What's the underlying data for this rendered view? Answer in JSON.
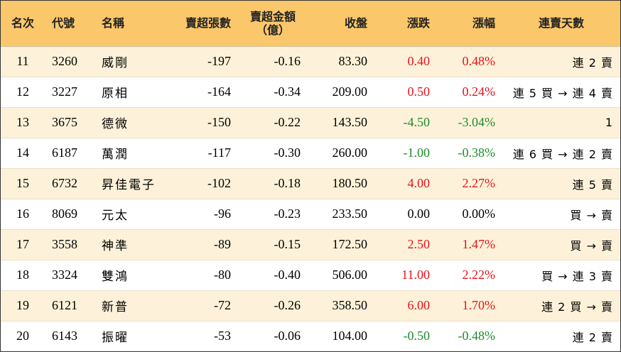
{
  "columns": {
    "rank": "名次",
    "code": "代號",
    "name": "名稱",
    "net_lots": "賣超張數",
    "net_amount_line1": "賣超金額",
    "net_amount_line2": "（億）",
    "close": "收盤",
    "change": "漲跌",
    "pct": "漲幅",
    "streak": "連賣天數"
  },
  "colors": {
    "header_bg": "#fbc76b",
    "stripe": "#fdf2d9",
    "up": "#e8111b",
    "down": "#1f8a2c"
  },
  "rows": [
    {
      "rank": "11",
      "code": "3260",
      "name": "威剛",
      "net_lots": "-197",
      "net_amount": "-0.16",
      "close": "83.30",
      "change": "0.40",
      "pct": "0.48%",
      "dir": "up",
      "streak": "連 2 賣"
    },
    {
      "rank": "12",
      "code": "3227",
      "name": "原相",
      "net_lots": "-164",
      "net_amount": "-0.34",
      "close": "209.00",
      "change": "0.50",
      "pct": "0.24%",
      "dir": "up",
      "streak": "連 5 買 → 連 4 賣"
    },
    {
      "rank": "13",
      "code": "3675",
      "name": "德微",
      "net_lots": "-150",
      "net_amount": "-0.22",
      "close": "143.50",
      "change": "-4.50",
      "pct": "-3.04%",
      "dir": "down",
      "streak": "1"
    },
    {
      "rank": "14",
      "code": "6187",
      "name": "萬潤",
      "net_lots": "-117",
      "net_amount": "-0.30",
      "close": "260.00",
      "change": "-1.00",
      "pct": "-0.38%",
      "dir": "down",
      "streak": "連 6 買 → 連 2 賣"
    },
    {
      "rank": "15",
      "code": "6732",
      "name": "昇佳電子",
      "net_lots": "-102",
      "net_amount": "-0.18",
      "close": "180.50",
      "change": "4.00",
      "pct": "2.27%",
      "dir": "up",
      "streak": "連 5 賣"
    },
    {
      "rank": "16",
      "code": "8069",
      "name": "元太",
      "net_lots": "-96",
      "net_amount": "-0.23",
      "close": "233.50",
      "change": "0.00",
      "pct": "0.00%",
      "dir": "flat",
      "streak": "買 → 賣"
    },
    {
      "rank": "17",
      "code": "3558",
      "name": "神準",
      "net_lots": "-89",
      "net_amount": "-0.15",
      "close": "172.50",
      "change": "2.50",
      "pct": "1.47%",
      "dir": "up",
      "streak": "買 → 賣"
    },
    {
      "rank": "18",
      "code": "3324",
      "name": "雙鴻",
      "net_lots": "-80",
      "net_amount": "-0.40",
      "close": "506.00",
      "change": "11.00",
      "pct": "2.22%",
      "dir": "up",
      "streak": "買 → 連 3 賣"
    },
    {
      "rank": "19",
      "code": "6121",
      "name": "新普",
      "net_lots": "-72",
      "net_amount": "-0.26",
      "close": "358.50",
      "change": "6.00",
      "pct": "1.70%",
      "dir": "up",
      "streak": "連 2 買 → 賣"
    },
    {
      "rank": "20",
      "code": "6143",
      "name": "振曜",
      "net_lots": "-53",
      "net_amount": "-0.06",
      "close": "104.00",
      "change": "-0.50",
      "pct": "-0.48%",
      "dir": "down",
      "streak": "連 2 賣"
    }
  ]
}
